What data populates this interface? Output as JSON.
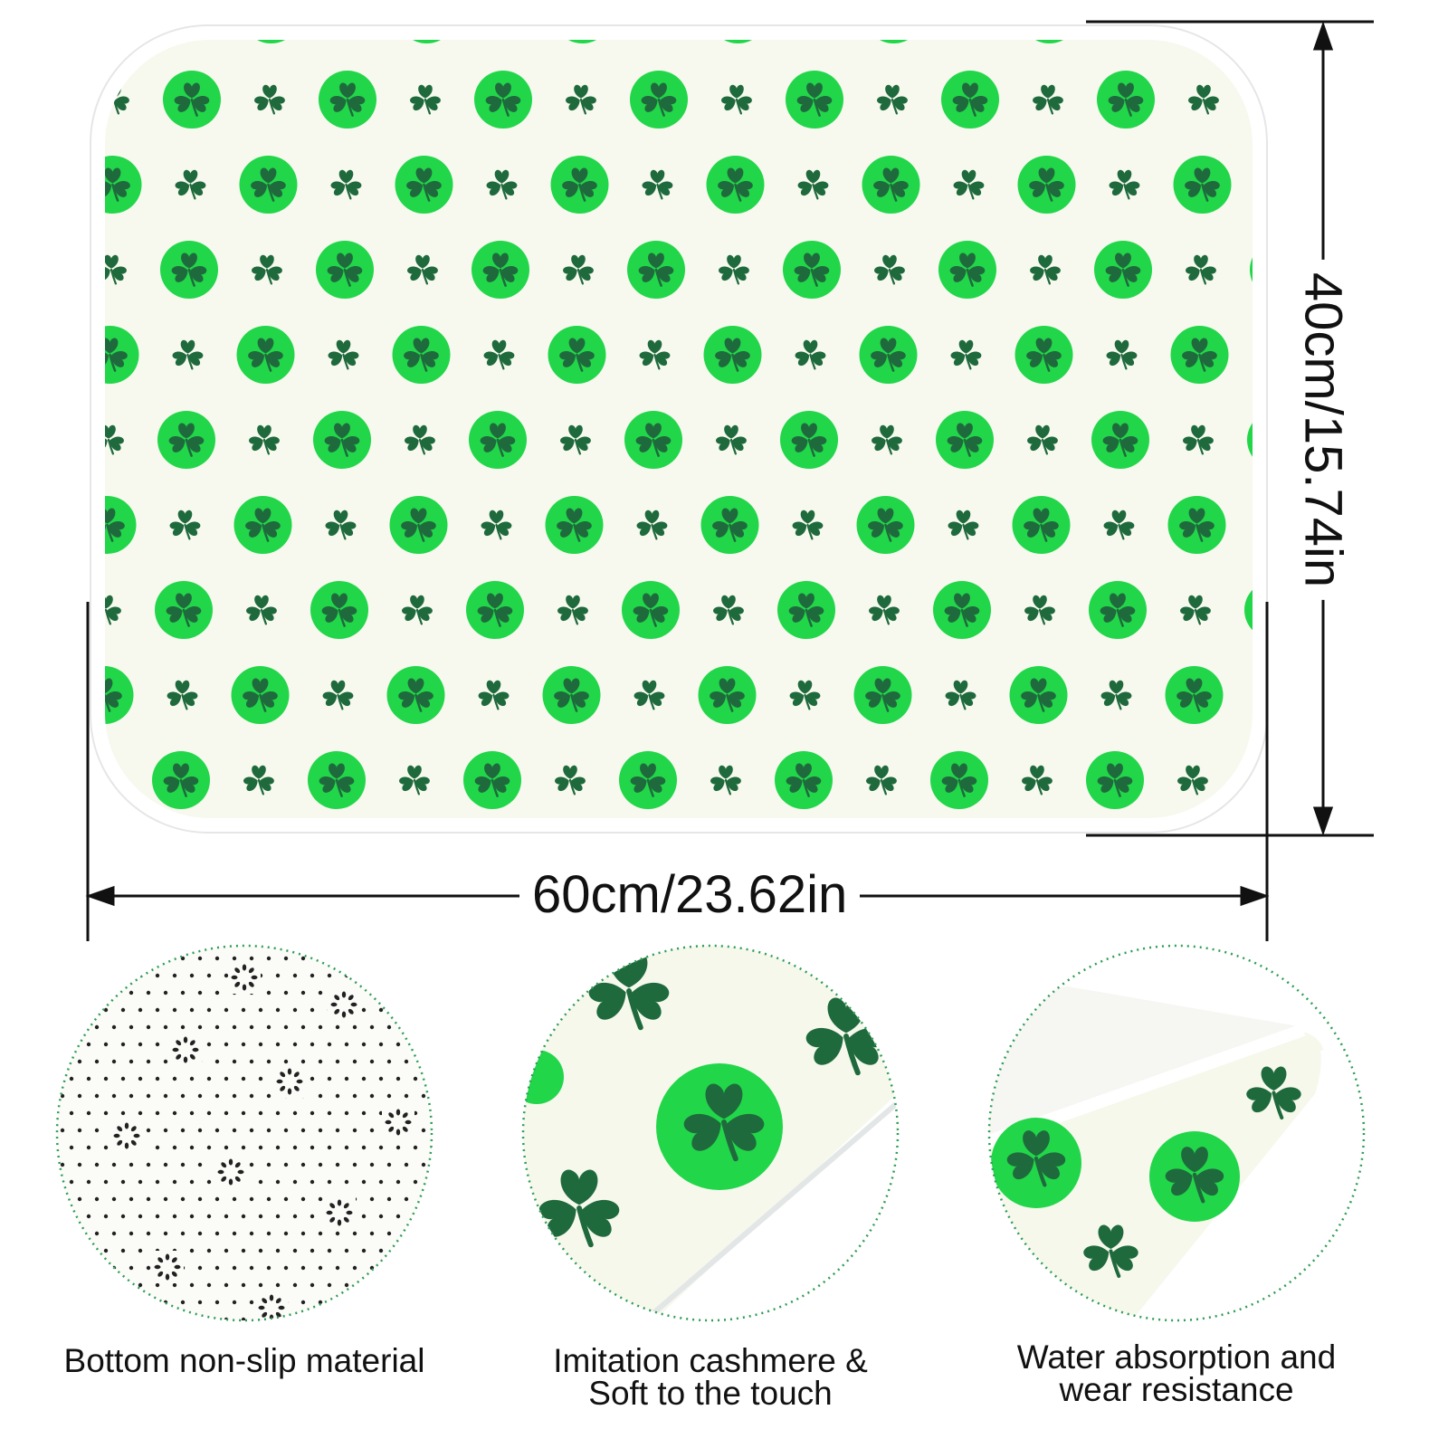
{
  "dimensions": {
    "width_label": "60cm/23.62in",
    "height_label": "40cm/15.74in"
  },
  "features": [
    {
      "caption": "Bottom non-slip material"
    },
    {
      "caption_line1": "Imitation cashmere &",
      "caption_line2": "Soft to the touch"
    },
    {
      "caption_line1": "Water absorption and",
      "caption_line2": "wear resistance"
    }
  ],
  "colors": {
    "circle_green": "#22d64a",
    "shamrock_dark": "#1f6a3c",
    "mat_cream": "#f7f8ee",
    "dotted_outline": "#2e9e55"
  },
  "icons": [
    "shamrock-icon",
    "arrow-icon"
  ]
}
